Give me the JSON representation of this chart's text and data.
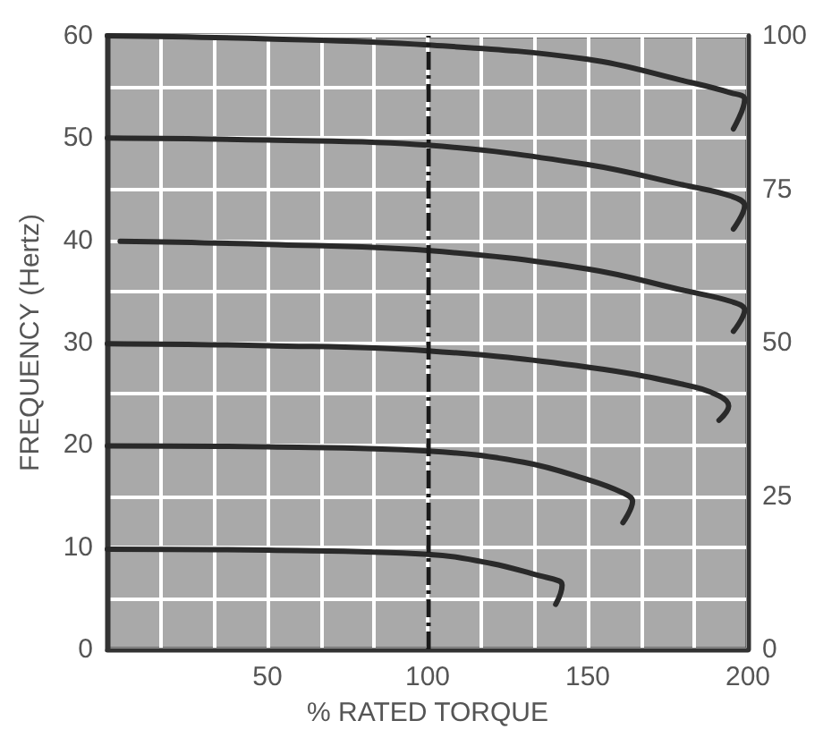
{
  "chart_data": {
    "type": "line",
    "xlabel": "% RATED TORQUE",
    "ylabel": "FREQUENCY (Hertz)",
    "series": [
      {
        "color": "#2a2a2a",
        "x": [
          0,
          50,
          100,
          150,
          180,
          195,
          199,
          195.5
        ],
        "values": [
          60,
          59.7,
          59.1,
          57.7,
          55.6,
          54.4,
          53.8,
          50.9
        ]
      },
      {
        "color": "#2a2a2a",
        "x": [
          0,
          50,
          100,
          150,
          180,
          195,
          199,
          195.5
        ],
        "values": [
          50,
          49.8,
          49.3,
          47.4,
          45.4,
          44.3,
          43.4,
          41.1
        ]
      },
      {
        "color": "#2a2a2a",
        "x": [
          4,
          50,
          100,
          150,
          180,
          195,
          199,
          195.5
        ],
        "values": [
          39.9,
          39.6,
          39,
          37.2,
          35.1,
          34,
          33.2,
          31.1
        ]
      },
      {
        "color": "#2a2a2a",
        "x": [
          0,
          50,
          100,
          150,
          180,
          191,
          194,
          191
        ],
        "values": [
          29.9,
          29.7,
          29.2,
          27.6,
          25.9,
          24.8,
          23.8,
          22.4
        ]
      },
      {
        "color": "#2a2a2a",
        "x": [
          0,
          50,
          100,
          130,
          150,
          161,
          164,
          161
        ],
        "values": [
          19.9,
          19.8,
          19.4,
          18.3,
          16.6,
          15.3,
          14.5,
          12.4
        ]
      },
      {
        "color": "#2a2a2a",
        "x": [
          0,
          50,
          100,
          120,
          135,
          141,
          142,
          140
        ],
        "values": [
          9.8,
          9.7,
          9.3,
          8.4,
          7.2,
          6.7,
          6.3,
          4.4
        ]
      }
    ],
    "xlim": [
      0,
      200
    ],
    "xticks": [
      {
        "value": 16.7,
        "label": null
      },
      {
        "value": 33.3,
        "label": null
      },
      50,
      {
        "value": 66.7,
        "label": null
      },
      {
        "value": 83.3,
        "label": null
      },
      100,
      {
        "value": 116.7,
        "label": null
      },
      {
        "value": 133.3,
        "label": null
      },
      150,
      {
        "value": 166.7,
        "label": null
      },
      {
        "value": 183.3,
        "label": null
      },
      200
    ],
    "ylim": [
      0,
      60
    ],
    "yticks": [
      0,
      {
        "value": 5,
        "label": null
      },
      10,
      {
        "value": 15,
        "label": null
      },
      20,
      {
        "value": 25,
        "label": null
      },
      30,
      {
        "value": 35,
        "label": null
      },
      40,
      {
        "value": 45,
        "label": null
      },
      50,
      {
        "value": 55,
        "label": null
      },
      60
    ],
    "y2lim": [
      0,
      100
    ],
    "y2ticks": [
      0,
      25,
      50,
      75,
      100
    ],
    "ref_lines": [
      {
        "axis": "x",
        "value": 100,
        "color": "#1a1a1a",
        "line_style": "dashed"
      }
    ],
    "grid": true,
    "marker": "none",
    "line_style": "solid"
  }
}
